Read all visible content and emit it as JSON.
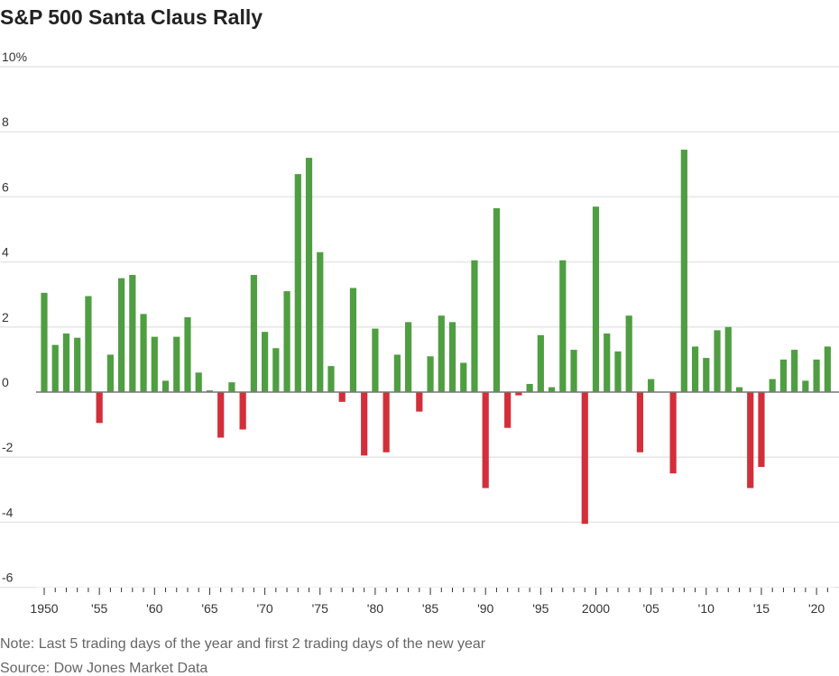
{
  "chart_data": {
    "type": "bar",
    "title": "S&P 500 Santa Claus Rally",
    "xlabel": "",
    "ylabel": "",
    "ylim": [
      -6,
      10
    ],
    "yticks": [
      -6,
      -4,
      -2,
      0,
      2,
      4,
      6,
      8,
      10
    ],
    "ytick_labels": [
      "-6",
      "-4",
      "-2",
      "0",
      "2",
      "4",
      "6",
      "8",
      "10%"
    ],
    "xtick_years": [
      1950,
      1955,
      1960,
      1965,
      1970,
      1975,
      1980,
      1985,
      1990,
      1995,
      2000,
      2005,
      2010,
      2015,
      2020
    ],
    "xtick_labels": [
      "1950",
      "'55",
      "'60",
      "'65",
      "'70",
      "'75",
      "'80",
      "'85",
      "'90",
      "'95",
      "2000",
      "'05",
      "'10",
      "'15",
      "'20"
    ],
    "grid": true,
    "colors": {
      "positive": "#4f9e42",
      "negative": "#d32f3a"
    },
    "categories": [
      1950,
      1951,
      1952,
      1953,
      1954,
      1955,
      1956,
      1957,
      1958,
      1959,
      1960,
      1961,
      1962,
      1963,
      1964,
      1965,
      1966,
      1967,
      1968,
      1969,
      1970,
      1971,
      1972,
      1973,
      1974,
      1975,
      1976,
      1977,
      1978,
      1979,
      1980,
      1981,
      1982,
      1983,
      1984,
      1985,
      1986,
      1987,
      1988,
      1989,
      1990,
      1991,
      1992,
      1993,
      1994,
      1995,
      1996,
      1997,
      1998,
      1999,
      2000,
      2001,
      2002,
      2003,
      2004,
      2005,
      2006,
      2007,
      2008,
      2009,
      2010,
      2011,
      2012,
      2013,
      2014,
      2015,
      2016,
      2017,
      2018,
      2019,
      2020,
      2021
    ],
    "values": [
      3.05,
      1.45,
      1.8,
      1.67,
      2.95,
      -0.95,
      1.15,
      3.5,
      3.6,
      2.4,
      1.7,
      0.35,
      1.7,
      2.3,
      0.6,
      0.05,
      -1.4,
      0.3,
      -1.15,
      3.6,
      1.85,
      1.35,
      3.1,
      6.7,
      7.2,
      4.3,
      0.8,
      -0.3,
      3.2,
      -1.95,
      1.95,
      -1.85,
      1.15,
      2.15,
      -0.6,
      1.1,
      2.35,
      2.15,
      0.9,
      4.05,
      -2.95,
      5.65,
      -1.1,
      -0.1,
      0.25,
      1.75,
      0.15,
      4.05,
      1.3,
      -4.05,
      5.7,
      1.8,
      1.25,
      2.35,
      -1.85,
      0.4,
      0.0,
      -2.5,
      7.45,
      1.4,
      1.05,
      1.9,
      2.0,
      0.15,
      -2.95,
      -2.3,
      0.4,
      1.0,
      1.3,
      0.35,
      1.0,
      1.4
    ]
  },
  "notes": {
    "note": "Note: Last 5 trading days of the year and first 2 trading days of the new year",
    "source": "Source: Dow Jones Market Data"
  }
}
